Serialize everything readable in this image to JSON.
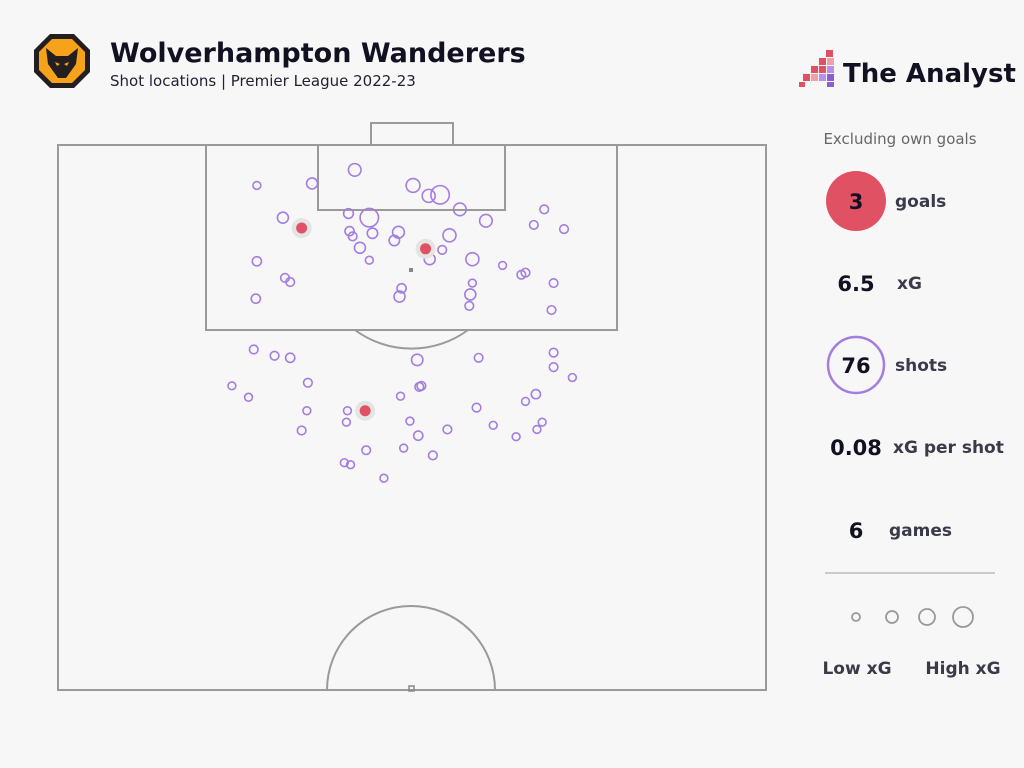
{
  "header": {
    "title": "Wolverhampton Wanderers",
    "subtitle": "Shot locations | Premier League 2022-23",
    "club_logo": "wolves-crest",
    "brand_logo": "The Analyst"
  },
  "colors": {
    "background": "#f7f7f7",
    "goal": "#e05263",
    "shot": "#a47de0",
    "pitch_lines": "#9a9a9a"
  },
  "stats": {
    "note": "Excluding own goals",
    "goals_value": "3",
    "goals_label": "goals",
    "xg_value": "6.5",
    "xg_label": "xG",
    "shots_value": "76",
    "shots_label": "shots",
    "xg_per_shot_value": "0.08",
    "xg_per_shot_label": "xG per shot",
    "games_value": "6",
    "games_label": "games"
  },
  "legend": {
    "low": "Low xG",
    "high": "High xG"
  },
  "chart_data": {
    "type": "scatter",
    "pitch": "half-pitch, attacking goal at top",
    "units": "metres from left touchline (x) and from goal line (y)",
    "xlim": [
      0,
      68
    ],
    "ylim": [
      0,
      52.5
    ],
    "goals": [
      [
        23.4,
        8.0
      ],
      [
        35.3,
        10.0
      ],
      [
        29.5,
        25.6
      ]
    ],
    "shots": [
      [
        19.1,
        3.9,
        0.03
      ],
      [
        24.4,
        3.7,
        0.08
      ],
      [
        28.5,
        2.4,
        0.12
      ],
      [
        34.1,
        3.9,
        0.15
      ],
      [
        35.6,
        4.9,
        0.13
      ],
      [
        36.7,
        4.8,
        0.3
      ],
      [
        38.6,
        6.2,
        0.12
      ],
      [
        21.6,
        7.0,
        0.08
      ],
      [
        27.9,
        6.6,
        0.06
      ],
      [
        29.9,
        7.0,
        0.3
      ],
      [
        28.0,
        8.3,
        0.05
      ],
      [
        28.3,
        8.8,
        0.04
      ],
      [
        30.2,
        8.5,
        0.07
      ],
      [
        32.7,
        8.4,
        0.1
      ],
      [
        32.3,
        9.2,
        0.07
      ],
      [
        29.0,
        9.9,
        0.08
      ],
      [
        37.6,
        8.7,
        0.13
      ],
      [
        41.1,
        7.3,
        0.12
      ],
      [
        36.9,
        10.1,
        0.04
      ],
      [
        35.7,
        11.0,
        0.08
      ],
      [
        29.9,
        11.1,
        0.03
      ],
      [
        19.1,
        11.2,
        0.05
      ],
      [
        39.8,
        11.0,
        0.13
      ],
      [
        42.7,
        11.6,
        0.03
      ],
      [
        44.5,
        12.5,
        0.04
      ],
      [
        44.9,
        12.3,
        0.04
      ],
      [
        46.7,
        6.2,
        0.04
      ],
      [
        45.7,
        7.7,
        0.04
      ],
      [
        48.6,
        8.1,
        0.04
      ],
      [
        21.8,
        12.8,
        0.04
      ],
      [
        22.3,
        13.2,
        0.04
      ],
      [
        39.8,
        13.3,
        0.03
      ],
      [
        47.6,
        13.3,
        0.04
      ],
      [
        33.0,
        13.8,
        0.05
      ],
      [
        32.8,
        14.6,
        0.08
      ],
      [
        39.6,
        14.4,
        0.08
      ],
      [
        39.5,
        15.5,
        0.04
      ],
      [
        19.0,
        14.8,
        0.05
      ],
      [
        47.4,
        15.9,
        0.04
      ],
      [
        18.8,
        19.7,
        0.04
      ],
      [
        20.8,
        20.3,
        0.04
      ],
      [
        22.3,
        20.5,
        0.05
      ],
      [
        34.5,
        20.7,
        0.09
      ],
      [
        40.4,
        20.5,
        0.04
      ],
      [
        47.6,
        20.0,
        0.04
      ],
      [
        47.6,
        21.4,
        0.04
      ],
      [
        49.4,
        22.4,
        0.03
      ],
      [
        16.7,
        23.2,
        0.03
      ],
      [
        24.0,
        22.9,
        0.04
      ],
      [
        34.7,
        23.3,
        0.04
      ],
      [
        34.9,
        23.2,
        0.04
      ],
      [
        18.3,
        24.3,
        0.03
      ],
      [
        32.9,
        24.2,
        0.03
      ],
      [
        45.9,
        24.0,
        0.05
      ],
      [
        44.9,
        24.7,
        0.03
      ],
      [
        23.9,
        25.6,
        0.03
      ],
      [
        27.8,
        25.6,
        0.03
      ],
      [
        40.2,
        25.3,
        0.04
      ],
      [
        27.7,
        26.7,
        0.03
      ],
      [
        33.8,
        26.6,
        0.03
      ],
      [
        23.4,
        27.5,
        0.04
      ],
      [
        37.4,
        27.4,
        0.04
      ],
      [
        41.8,
        27.0,
        0.03
      ],
      [
        46.5,
        26.7,
        0.03
      ],
      [
        46.0,
        27.4,
        0.03
      ],
      [
        44.0,
        28.1,
        0.03
      ],
      [
        34.6,
        28.0,
        0.05
      ],
      [
        29.6,
        29.4,
        0.04
      ],
      [
        33.2,
        29.2,
        0.03
      ],
      [
        36.0,
        29.9,
        0.04
      ],
      [
        27.5,
        30.6,
        0.03
      ],
      [
        28.1,
        30.8,
        0.03
      ],
      [
        31.3,
        32.1,
        0.03
      ]
    ]
  }
}
